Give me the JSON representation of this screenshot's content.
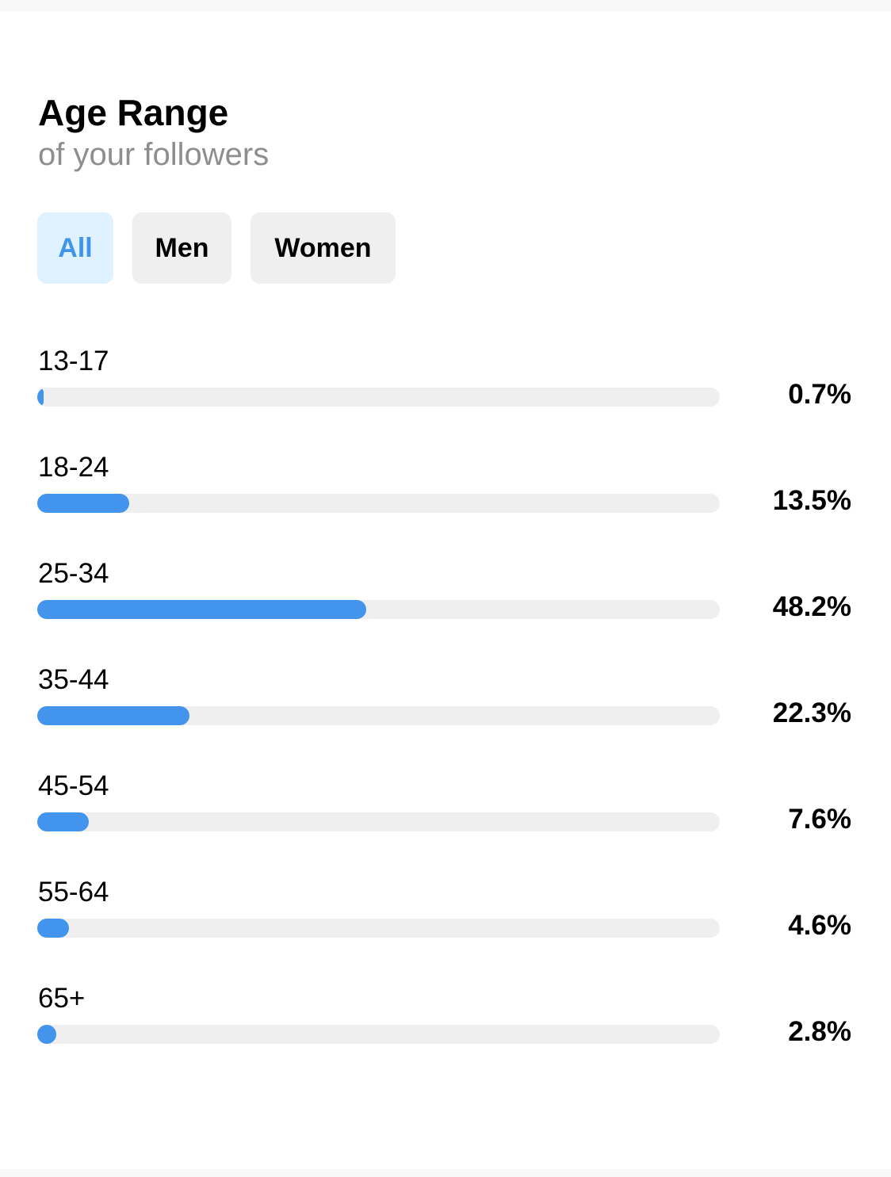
{
  "header": {
    "title": "Age Range",
    "subtitle": "of your followers"
  },
  "tabs": [
    {
      "label": "All",
      "selected": true
    },
    {
      "label": "Men",
      "selected": false
    },
    {
      "label": "Women",
      "selected": false
    }
  ],
  "colors": {
    "bar_fill": "#4294ec",
    "track": "#efefef",
    "tab_active_bg": "#e0f1ff",
    "tab_active_text": "#3f95ea",
    "tab_bg": "#efefef",
    "subtitle": "#8e8e8e"
  },
  "age_ranges": [
    {
      "label": "13-17",
      "value": "0.7%",
      "percent": 0.7
    },
    {
      "label": "18-24",
      "value": "13.5%",
      "percent": 13.5
    },
    {
      "label": "25-34",
      "value": "48.2%",
      "percent": 48.2
    },
    {
      "label": "35-44",
      "value": "22.3%",
      "percent": 22.3
    },
    {
      "label": "45-54",
      "value": "7.6%",
      "percent": 7.6
    },
    {
      "label": "55-64",
      "value": "4.6%",
      "percent": 4.6
    },
    {
      "label": "65+",
      "value": "2.8%",
      "percent": 2.8
    }
  ]
}
